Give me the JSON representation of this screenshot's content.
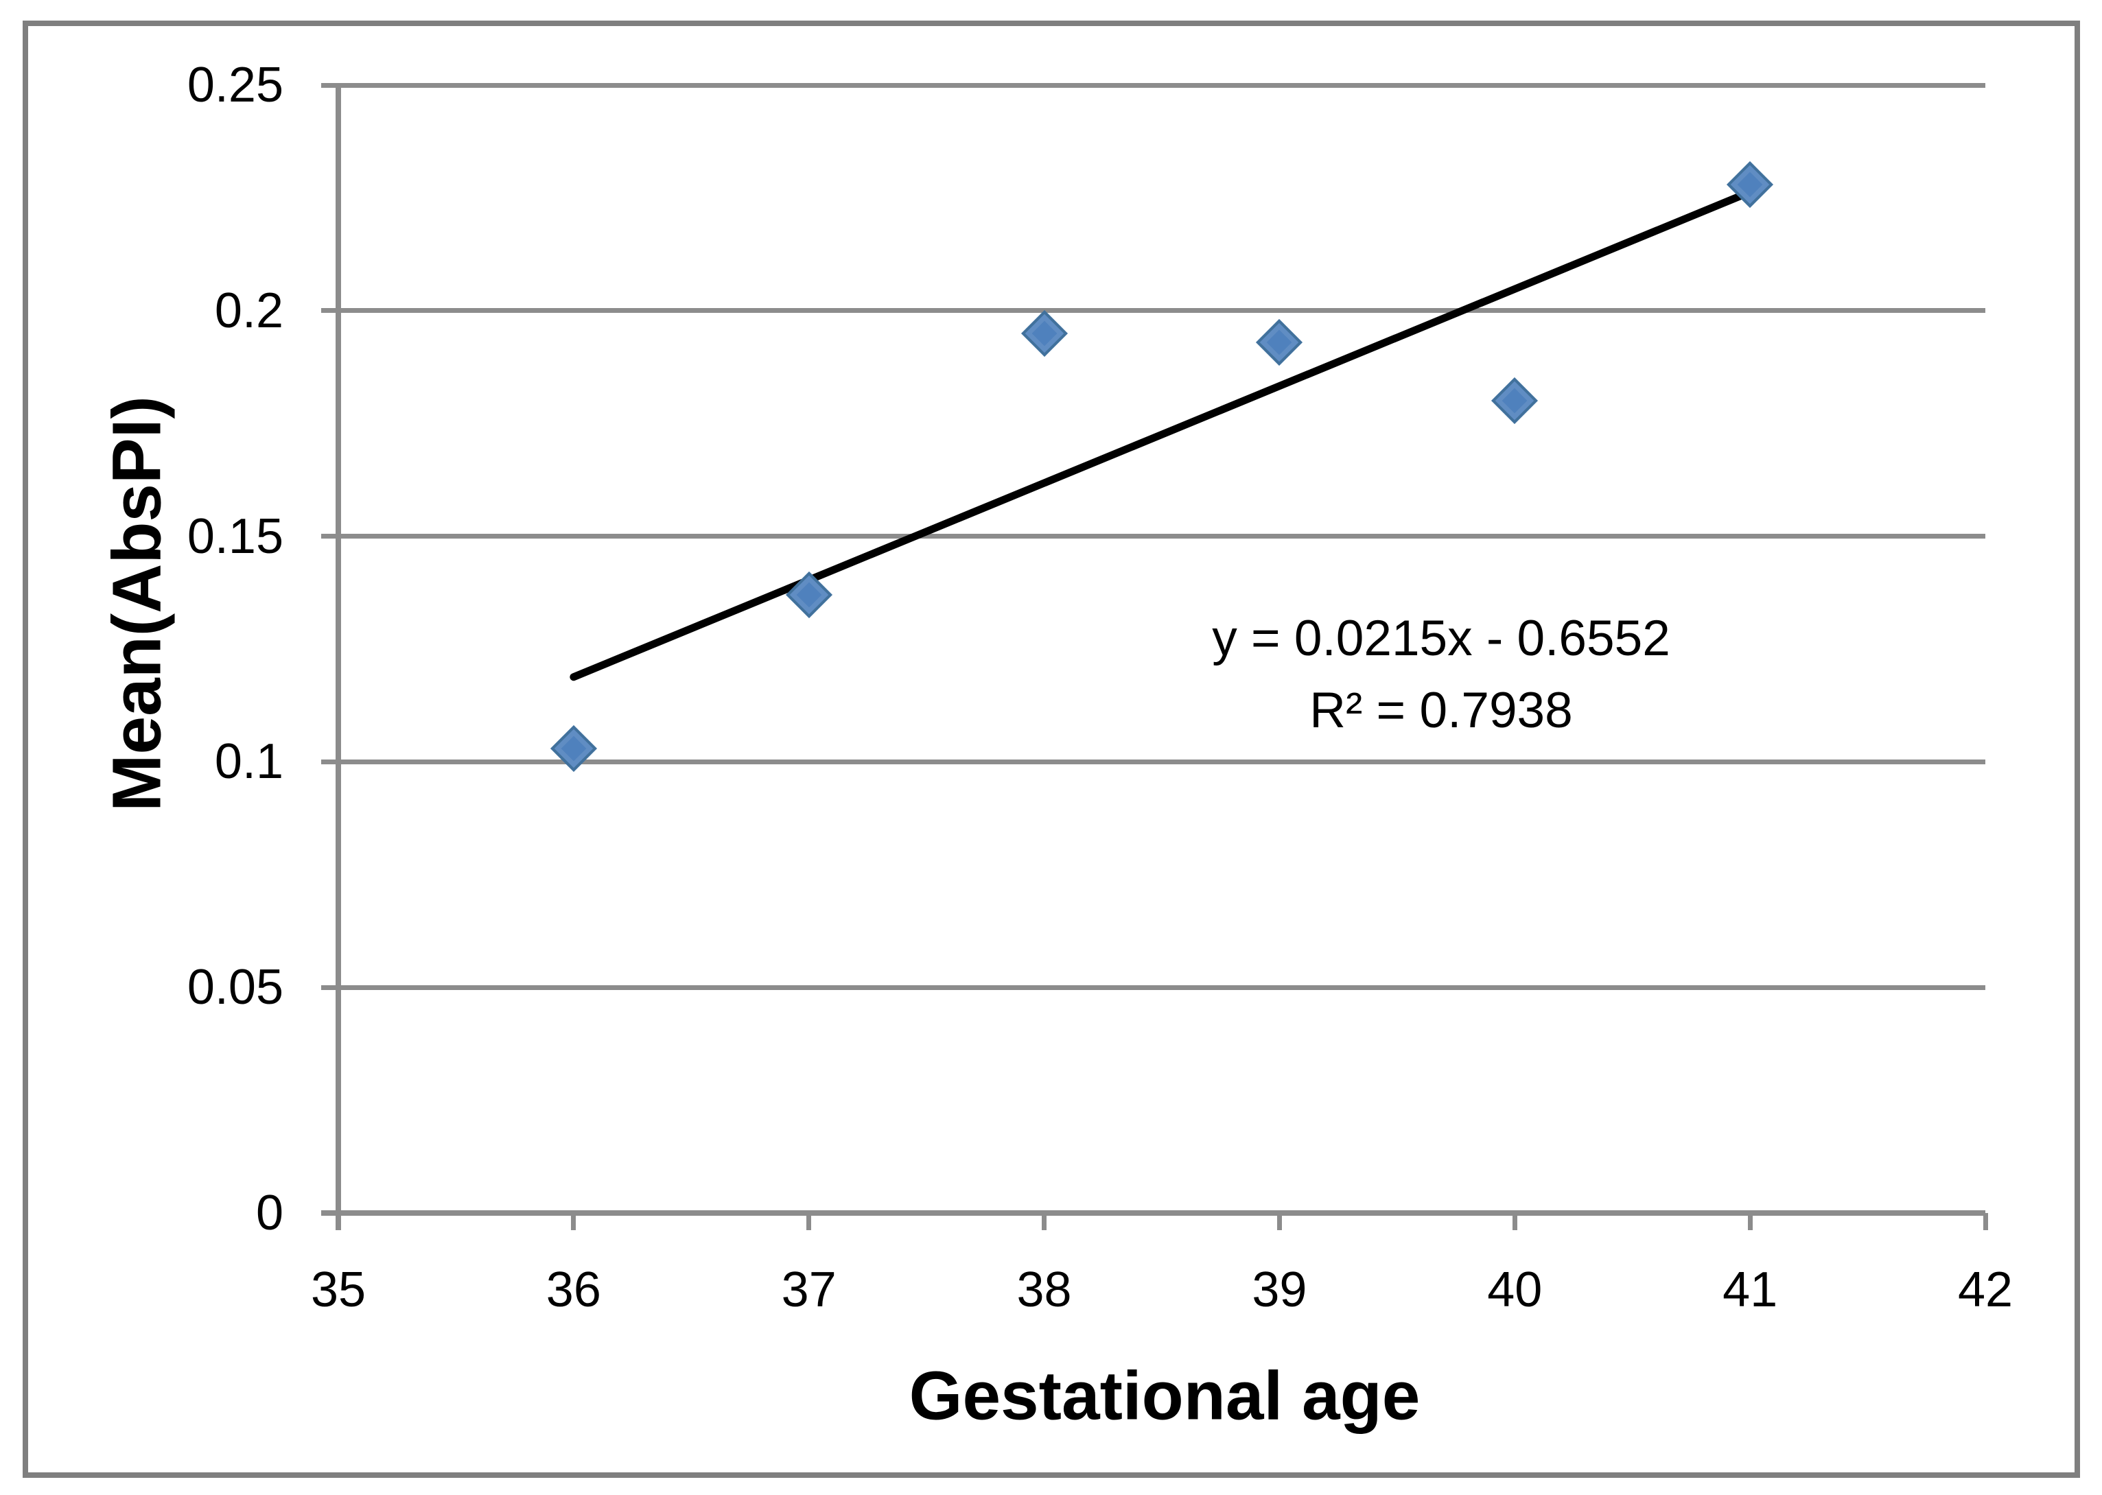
{
  "chart_data": {
    "type": "scatter",
    "title": "",
    "xlabel": "Gestational age",
    "ylabel": "Mean(AbsPI)",
    "x": [
      36,
      37,
      38,
      39,
      40,
      41
    ],
    "y": [
      0.103,
      0.137,
      0.195,
      0.193,
      0.18,
      0.228
    ],
    "xlim": [
      35,
      42
    ],
    "ylim": [
      0,
      0.25
    ],
    "x_tick_values": [
      35,
      36,
      37,
      38,
      39,
      40,
      41,
      42
    ],
    "x_tick_labels": [
      "35",
      "36",
      "37",
      "38",
      "39",
      "40",
      "41",
      "42"
    ],
    "y_tick_values": [
      0,
      0.05,
      0.1,
      0.15,
      0.2,
      0.25
    ],
    "y_tick_labels": [
      "0",
      "0.05",
      "0.1",
      "0.15",
      "0.2",
      "0.25"
    ],
    "grid": "horizontal-only",
    "legend": "none",
    "marker": {
      "shape": "diamond",
      "fill": "#4f81bd",
      "edge": "#41719c"
    },
    "trendline": {
      "slope": 0.0215,
      "intercept": -0.6552,
      "x_start": 36,
      "x_end": 41,
      "color": "#000000",
      "equation_label": "y = 0.0215x - 0.6552",
      "r2_label": "R² = 0.7938"
    },
    "colors": {
      "axis": "#8c8c8c",
      "gridline": "#8c8c8c",
      "frame_border": "#7f7f7f",
      "text": "#000000"
    }
  }
}
